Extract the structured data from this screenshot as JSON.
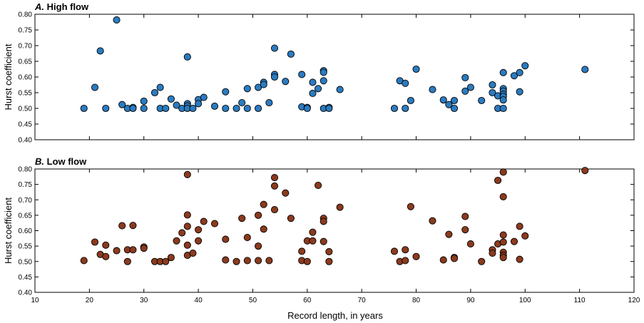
{
  "chart_data": [
    {
      "type": "scatter",
      "panel_letter": "A.",
      "title": "High flow",
      "xlabel": "Record length, in years",
      "ylabel": "Hurst coefficient",
      "xlim": [
        10,
        120
      ],
      "ylim": [
        0.4,
        0.8
      ],
      "x_ticks": [
        "10",
        "20",
        "30",
        "40",
        "50",
        "60",
        "70",
        "80",
        "90",
        "100",
        "110",
        "120"
      ],
      "y_ticks": [
        "0.40",
        "0.45",
        "0.50",
        "0.55",
        "0.60",
        "0.65",
        "0.70",
        "0.75",
        "0.80"
      ],
      "color": "#2b7bc0",
      "points": [
        [
          19,
          0.5
        ],
        [
          21,
          0.567
        ],
        [
          22,
          0.683
        ],
        [
          23,
          0.5
        ],
        [
          25,
          0.782
        ],
        [
          26,
          0.512
        ],
        [
          27,
          0.5
        ],
        [
          28,
          0.503
        ],
        [
          28,
          0.5
        ],
        [
          30,
          0.523
        ],
        [
          30,
          0.5
        ],
        [
          32,
          0.55
        ],
        [
          33,
          0.567
        ],
        [
          33,
          0.5
        ],
        [
          34,
          0.5
        ],
        [
          35,
          0.53
        ],
        [
          36,
          0.51
        ],
        [
          37,
          0.5
        ],
        [
          38,
          0.664
        ],
        [
          38,
          0.515
        ],
        [
          38,
          0.508
        ],
        [
          38,
          0.5
        ],
        [
          39,
          0.5
        ],
        [
          40,
          0.528
        ],
        [
          40,
          0.515
        ],
        [
          41,
          0.535
        ],
        [
          43,
          0.507
        ],
        [
          45,
          0.553
        ],
        [
          45,
          0.5
        ],
        [
          47,
          0.5
        ],
        [
          48,
          0.518
        ],
        [
          49,
          0.563
        ],
        [
          49,
          0.5
        ],
        [
          51,
          0.567
        ],
        [
          51,
          0.5
        ],
        [
          52,
          0.583
        ],
        [
          52,
          0.576
        ],
        [
          53,
          0.518
        ],
        [
          54,
          0.692
        ],
        [
          54,
          0.608
        ],
        [
          54,
          0.6
        ],
        [
          56,
          0.586
        ],
        [
          57,
          0.673
        ],
        [
          59,
          0.608
        ],
        [
          59,
          0.505
        ],
        [
          60,
          0.503
        ],
        [
          60,
          0.5
        ],
        [
          61,
          0.583
        ],
        [
          61,
          0.548
        ],
        [
          62,
          0.563
        ],
        [
          63,
          0.62
        ],
        [
          63,
          0.615
        ],
        [
          63,
          0.588
        ],
        [
          63,
          0.5
        ],
        [
          64,
          0.503
        ],
        [
          64,
          0.5
        ],
        [
          66,
          0.56
        ],
        [
          76,
          0.5
        ],
        [
          77,
          0.588
        ],
        [
          78,
          0.58
        ],
        [
          78,
          0.5
        ],
        [
          79,
          0.525
        ],
        [
          80,
          0.625
        ],
        [
          83,
          0.56
        ],
        [
          85,
          0.527
        ],
        [
          86,
          0.512
        ],
        [
          87,
          0.525
        ],
        [
          87,
          0.5
        ],
        [
          89,
          0.598
        ],
        [
          89,
          0.555
        ],
        [
          90,
          0.567
        ],
        [
          92,
          0.525
        ],
        [
          94,
          0.575
        ],
        [
          94,
          0.55
        ],
        [
          95,
          0.54
        ],
        [
          95,
          0.5
        ],
        [
          96,
          0.614
        ],
        [
          96,
          0.563
        ],
        [
          96,
          0.555
        ],
        [
          96,
          0.545
        ],
        [
          96,
          0.538
        ],
        [
          96,
          0.527
        ],
        [
          96,
          0.5
        ],
        [
          98,
          0.604
        ],
        [
          99,
          0.614
        ],
        [
          99,
          0.553
        ],
        [
          100,
          0.636
        ],
        [
          111,
          0.624
        ]
      ]
    },
    {
      "type": "scatter",
      "panel_letter": "B.",
      "title": "Low flow",
      "xlabel": "Record length, in years",
      "ylabel": "Hurst coefficient",
      "xlim": [
        10,
        120
      ],
      "ylim": [
        0.4,
        0.8
      ],
      "x_ticks": [
        "10",
        "20",
        "30",
        "40",
        "50",
        "60",
        "70",
        "80",
        "90",
        "100",
        "110",
        "120"
      ],
      "y_ticks": [
        "0.40",
        "0.45",
        "0.50",
        "0.55",
        "0.60",
        "0.65",
        "0.70",
        "0.75",
        "0.80"
      ],
      "color": "#8b3a1e",
      "points": [
        [
          19,
          0.503
        ],
        [
          21,
          0.563
        ],
        [
          22,
          0.523
        ],
        [
          23,
          0.553
        ],
        [
          23,
          0.516
        ],
        [
          25,
          0.535
        ],
        [
          26,
          0.616
        ],
        [
          27,
          0.538
        ],
        [
          27,
          0.5
        ],
        [
          28,
          0.617
        ],
        [
          28,
          0.538
        ],
        [
          30,
          0.547
        ],
        [
          30,
          0.543
        ],
        [
          32,
          0.5
        ],
        [
          33,
          0.5
        ],
        [
          34,
          0.5
        ],
        [
          35,
          0.513
        ],
        [
          36,
          0.567
        ],
        [
          37,
          0.593
        ],
        [
          38,
          0.782
        ],
        [
          38,
          0.651
        ],
        [
          38,
          0.614
        ],
        [
          38,
          0.553
        ],
        [
          38,
          0.52
        ],
        [
          39,
          0.527
        ],
        [
          40,
          0.603
        ],
        [
          40,
          0.567
        ],
        [
          41,
          0.63
        ],
        [
          43,
          0.623
        ],
        [
          45,
          0.572
        ],
        [
          45,
          0.505
        ],
        [
          47,
          0.5
        ],
        [
          48,
          0.64
        ],
        [
          49,
          0.578
        ],
        [
          49,
          0.503
        ],
        [
          51,
          0.65
        ],
        [
          51,
          0.55
        ],
        [
          51,
          0.503
        ],
        [
          52,
          0.685
        ],
        [
          52,
          0.605
        ],
        [
          53,
          0.503
        ],
        [
          54,
          0.772
        ],
        [
          54,
          0.745
        ],
        [
          54,
          0.668
        ],
        [
          56,
          0.722
        ],
        [
          57,
          0.64
        ],
        [
          59,
          0.533
        ],
        [
          59,
          0.503
        ],
        [
          60,
          0.567
        ],
        [
          60,
          0.5
        ],
        [
          61,
          0.595
        ],
        [
          61,
          0.567
        ],
        [
          62,
          0.747
        ],
        [
          63,
          0.64
        ],
        [
          63,
          0.63
        ],
        [
          63,
          0.565
        ],
        [
          64,
          0.532
        ],
        [
          64,
          0.5
        ],
        [
          66,
          0.676
        ],
        [
          76,
          0.533
        ],
        [
          77,
          0.5
        ],
        [
          78,
          0.538
        ],
        [
          78,
          0.503
        ],
        [
          79,
          0.678
        ],
        [
          80,
          0.516
        ],
        [
          83,
          0.632
        ],
        [
          85,
          0.505
        ],
        [
          86,
          0.588
        ],
        [
          87,
          0.513
        ],
        [
          87,
          0.51
        ],
        [
          89,
          0.646
        ],
        [
          89,
          0.603
        ],
        [
          90,
          0.557
        ],
        [
          92,
          0.5
        ],
        [
          94,
          0.538
        ],
        [
          94,
          0.527
        ],
        [
          95,
          0.763
        ],
        [
          95,
          0.557
        ],
        [
          96,
          0.79
        ],
        [
          96,
          0.71
        ],
        [
          96,
          0.586
        ],
        [
          96,
          0.563
        ],
        [
          96,
          0.53
        ],
        [
          96,
          0.52
        ],
        [
          96,
          0.513
        ],
        [
          98,
          0.565
        ],
        [
          99,
          0.614
        ],
        [
          99,
          0.507
        ],
        [
          100,
          0.583
        ],
        [
          111,
          0.795
        ]
      ]
    }
  ]
}
